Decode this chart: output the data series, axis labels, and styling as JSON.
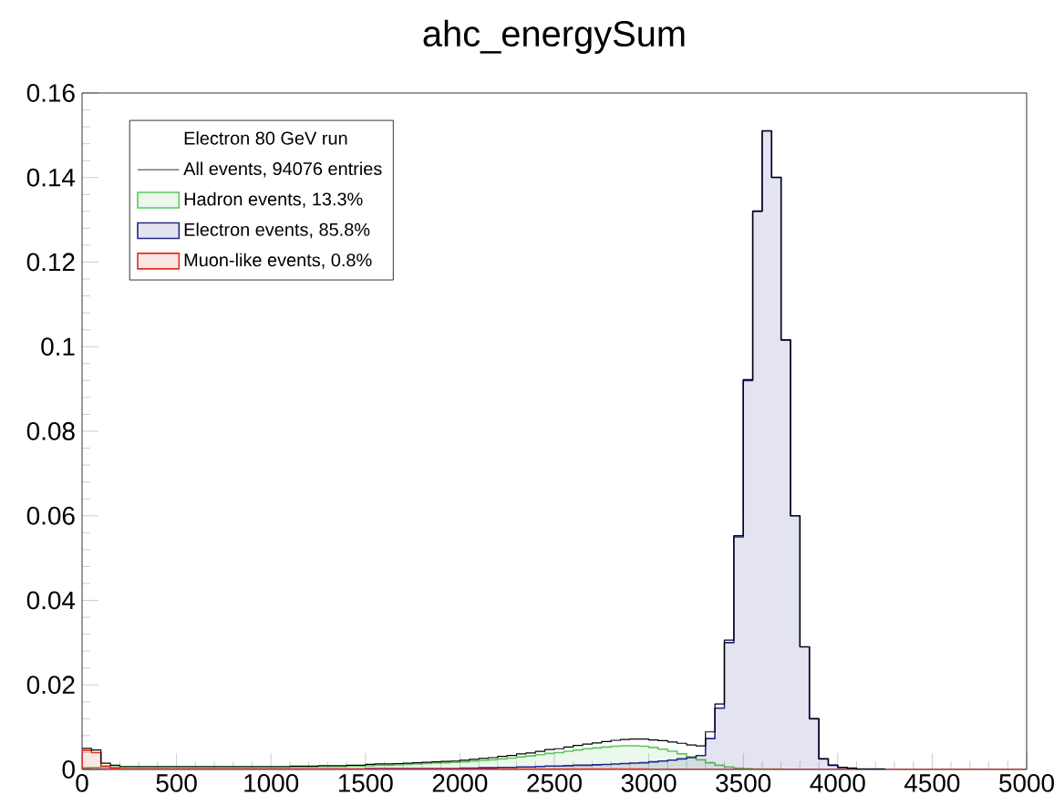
{
  "chart_data": {
    "type": "histogram",
    "title": "ahc_energySum",
    "legend_title": "Electron 80 GeV run",
    "legend": "top left",
    "bins": [
      0,
      50,
      100,
      150,
      200,
      250,
      300,
      350,
      400,
      450,
      500,
      550,
      600,
      650,
      700,
      750,
      800,
      850,
      900,
      950,
      1000,
      1050,
      1100,
      1150,
      1200,
      1250,
      1300,
      1350,
      1400,
      1450,
      1500,
      1550,
      1600,
      1650,
      1700,
      1750,
      1800,
      1850,
      1900,
      1950,
      2000,
      2050,
      2100,
      2150,
      2200,
      2250,
      2300,
      2350,
      2400,
      2450,
      2500,
      2550,
      2600,
      2650,
      2700,
      2750,
      2800,
      2850,
      2900,
      2950,
      3000,
      3050,
      3100,
      3150,
      3200,
      3250,
      3300,
      3350,
      3400,
      3450,
      3500,
      3550,
      3600,
      3650,
      3700,
      3750,
      3800,
      3850,
      3900,
      3950,
      4000,
      4050,
      4100,
      4150,
      4200,
      4250,
      4300,
      4350,
      4400,
      4450,
      4500,
      4550,
      4600,
      4650,
      4700,
      4750,
      4800,
      4850,
      4900,
      4950,
      5000
    ],
    "series": [
      {
        "name": "All events,  94076 entries",
        "type": "step",
        "color": "#000000",
        "x": [
          0,
          50,
          100,
          150,
          200,
          250,
          300,
          350,
          400,
          450,
          500,
          550,
          600,
          650,
          700,
          750,
          800,
          850,
          900,
          950,
          1000,
          1050,
          1100,
          1150,
          1200,
          1250,
          1300,
          1350,
          1400,
          1450,
          1500,
          1550,
          1600,
          1650,
          1700,
          1750,
          1800,
          1850,
          1900,
          1950,
          2000,
          2050,
          2100,
          2150,
          2200,
          2250,
          2300,
          2350,
          2400,
          2450,
          2500,
          2550,
          2600,
          2650,
          2700,
          2750,
          2800,
          2850,
          2900,
          2950,
          3000,
          3050,
          3100,
          3150,
          3200,
          3250,
          3300,
          3350,
          3400,
          3450,
          3500,
          3550,
          3600,
          3650,
          3700,
          3750,
          3800,
          3850,
          3900,
          3950,
          4000,
          4050,
          4100,
          4150,
          4200,
          4250
        ],
        "values": [
          0.005,
          0.0046,
          0.0015,
          0.001,
          0.0007,
          0.0007,
          0.0007,
          0.0007,
          0.0007,
          0.0007,
          0.0007,
          0.0007,
          0.0007,
          0.0007,
          0.0007,
          0.0007,
          0.0007,
          0.0007,
          0.0007,
          0.0007,
          0.0007,
          0.0007,
          0.0008,
          0.0008,
          0.0008,
          0.0009,
          0.0009,
          0.0009,
          0.001,
          0.001,
          0.0012,
          0.0013,
          0.0013,
          0.0014,
          0.0015,
          0.0016,
          0.0017,
          0.0018,
          0.0019,
          0.002,
          0.0022,
          0.0024,
          0.0026,
          0.0028,
          0.0031,
          0.0033,
          0.0037,
          0.0039,
          0.0043,
          0.0047,
          0.0049,
          0.0053,
          0.0057,
          0.006,
          0.0063,
          0.0066,
          0.0069,
          0.0071,
          0.0072,
          0.0072,
          0.007,
          0.0068,
          0.0065,
          0.0062,
          0.0058,
          0.0056,
          0.0089,
          0.0155,
          0.0306,
          0.0553,
          0.0922,
          0.1321,
          0.1511,
          0.1401,
          0.1016,
          0.06,
          0.029,
          0.012,
          0.0025,
          0.001,
          0.0005,
          0.0003,
          0.0001,
          0.0001,
          0.0001,
          0
        ]
      },
      {
        "name": "Hadron events, 13.3%",
        "color": "#5cc85c",
        "values": [
          0.0004,
          0.0005,
          0.0006,
          0.0006,
          0.0005,
          0.0005,
          0.0005,
          0.0005,
          0.0005,
          0.0005,
          0.0005,
          0.0005,
          0.0005,
          0.0005,
          0.0005,
          0.0005,
          0.0005,
          0.0005,
          0.0005,
          0.0005,
          0.0005,
          0.0005,
          0.0006,
          0.0006,
          0.0006,
          0.0007,
          0.0007,
          0.0007,
          0.0008,
          0.0008,
          0.0009,
          0.001,
          0.001,
          0.0011,
          0.0012,
          0.0013,
          0.0014,
          0.0015,
          0.0016,
          0.0017,
          0.0018,
          0.002,
          0.0021,
          0.0023,
          0.0025,
          0.0027,
          0.003,
          0.0032,
          0.0035,
          0.0038,
          0.004,
          0.0043,
          0.0046,
          0.0049,
          0.0051,
          0.0053,
          0.0055,
          0.0056,
          0.0056,
          0.0055,
          0.0052,
          0.0048,
          0.0043,
          0.0037,
          0.003,
          0.0023,
          0.0016,
          0.001,
          0.0006,
          0.0003,
          0.0002,
          0.0001,
          0.0001,
          0.0001,
          0,
          0,
          0,
          0,
          0,
          0,
          0,
          0,
          0,
          0,
          0,
          0,
          0,
          0,
          0,
          0,
          0,
          0,
          0,
          0,
          0,
          0,
          0,
          0,
          0,
          0
        ]
      },
      {
        "name": "Electron events, 85.8%",
        "color": "#24248f",
        "values": [
          0.0001,
          0.0001,
          0.0001,
          0.0001,
          0.0001,
          0.0001,
          0.0001,
          0.0001,
          0.0001,
          0.0001,
          0.0001,
          0.0001,
          0.0001,
          0.0001,
          0.0001,
          0.0001,
          0.0001,
          0.0001,
          0.0001,
          0.0001,
          0.0001,
          0.0001,
          0.0001,
          0.0001,
          0.0001,
          0.0001,
          0.0001,
          0.0001,
          0.0001,
          0.0001,
          0.0002,
          0.0002,
          0.0002,
          0.0002,
          0.0002,
          0.0002,
          0.0002,
          0.0002,
          0.0002,
          0.0002,
          0.0003,
          0.0003,
          0.0004,
          0.0004,
          0.0005,
          0.0005,
          0.0006,
          0.0006,
          0.0007,
          0.0008,
          0.0008,
          0.0009,
          0.001,
          0.001,
          0.0011,
          0.0012,
          0.0013,
          0.0014,
          0.0015,
          0.0016,
          0.0018,
          0.002,
          0.0022,
          0.0025,
          0.0028,
          0.0033,
          0.0073,
          0.0145,
          0.03,
          0.055,
          0.092,
          0.132,
          0.151,
          0.14,
          0.1016,
          0.06,
          0.029,
          0.012,
          0.0025,
          0.001,
          0.0005,
          0.0003,
          0.0001,
          0.0001,
          0.0001,
          0,
          0,
          0,
          0,
          0,
          0,
          0,
          0,
          0,
          0,
          0,
          0,
          0,
          0,
          0
        ]
      },
      {
        "name": "Muon-like events, 0.8%",
        "color": "#e03020",
        "values": [
          0.0045,
          0.004,
          0.0008,
          0.0003,
          0.0001,
          0.0001,
          0.0001,
          0.0001,
          0.0001,
          0.0001,
          0.0001,
          0.0001,
          0.0001,
          0.0001,
          0.0001,
          0.0001,
          0.0001,
          0.0001,
          0.0001,
          0.0001,
          0.0001,
          0.0001,
          0.0001,
          0.0001,
          0.0001,
          0.0001,
          0.0001,
          0.0001,
          0.0001,
          0.0001,
          0.0001,
          0.0001,
          0.0001,
          0.0001,
          0.0001,
          0.0001,
          0.0001,
          0.0001,
          0.0001,
          0.0001,
          0.0001,
          0.0001,
          0.0001,
          0.0001,
          0.0001,
          0.0001,
          0.0001,
          0.0001,
          0.0001,
          0.0001,
          0.0001,
          0.0001,
          0.0001,
          0.0001,
          0.0001,
          0.0001,
          0.0001,
          0.0001,
          0.0001,
          0.0001,
          0,
          0,
          0,
          0,
          0,
          0,
          0,
          0,
          0,
          0,
          0,
          0,
          0,
          0,
          0,
          0,
          0,
          0,
          0,
          0,
          0,
          0,
          0,
          0,
          0,
          0,
          0,
          0,
          0,
          0,
          0,
          0,
          0,
          0,
          0,
          0,
          0,
          0,
          0,
          0
        ]
      }
    ],
    "xlim": [
      0,
      5000
    ],
    "xticks": [
      0,
      500,
      1000,
      1500,
      2000,
      2500,
      3000,
      3500,
      4000,
      4500,
      5000
    ],
    "ylim": [
      0,
      0.16
    ],
    "yticks": [
      0,
      0.02,
      0.04,
      0.06,
      0.08,
      0.1,
      0.12,
      0.14,
      0.16
    ]
  }
}
